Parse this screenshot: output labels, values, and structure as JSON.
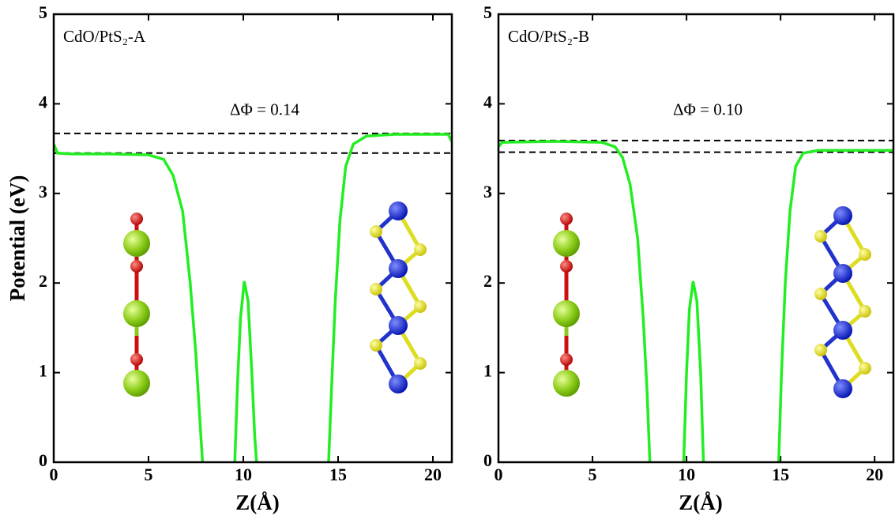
{
  "chart_data": [
    {
      "type": "line",
      "annotations": [
        "CdO/PtS₂-A",
        "ΔΦ = 0.14"
      ],
      "xlabel": "Z(Å)",
      "ylabel": "Potential (eV)",
      "xlim": [
        0,
        21
      ],
      "ylim": [
        0,
        5
      ],
      "xticks": [
        0,
        5,
        10,
        15,
        20
      ],
      "yticks": [
        0,
        1,
        2,
        3,
        4,
        5
      ],
      "reference_lines": [
        3.67,
        3.45
      ],
      "series": [
        {
          "color": "#22ee22",
          "x": [
            0,
            0.2,
            1,
            3,
            5,
            5.8,
            6.3,
            6.8,
            7.2,
            7.5,
            7.7,
            7.85,
            8.5,
            9.55,
            9.7,
            9.85,
            10.05,
            10.25,
            10.45,
            10.6,
            10.7,
            12,
            14.5,
            14.65,
            14.85,
            15.1,
            15.4,
            15.8,
            16.5,
            18,
            20,
            20.8,
            21
          ],
          "values": [
            3.55,
            3.45,
            3.44,
            3.44,
            3.43,
            3.38,
            3.2,
            2.8,
            2.0,
            1.2,
            0.5,
            0,
            null,
            0,
            0.9,
            1.6,
            2.02,
            1.8,
            1.0,
            0.3,
            0,
            null,
            0,
            0.8,
            1.8,
            2.7,
            3.3,
            3.55,
            3.64,
            3.66,
            3.66,
            3.66,
            3.58
          ]
        }
      ]
    },
    {
      "type": "line",
      "annotations": [
        "CdO/PtS₂-B",
        "ΔΦ = 0.10"
      ],
      "xlabel": "Z(Å)",
      "xlim": [
        0,
        21
      ],
      "ylim": [
        0,
        5
      ],
      "xticks": [
        0,
        5,
        10,
        15,
        20
      ],
      "yticks": [
        0,
        1,
        2,
        3,
        4,
        5
      ],
      "reference_lines": [
        3.59,
        3.46
      ],
      "series": [
        {
          "color": "#22ee22",
          "x": [
            0,
            0.2,
            3,
            5.5,
            6.2,
            6.6,
            7,
            7.4,
            7.7,
            7.9,
            8.05,
            9,
            9.85,
            10.0,
            10.15,
            10.35,
            10.55,
            10.75,
            10.9,
            13,
            14.9,
            15.05,
            15.25,
            15.5,
            15.8,
            16.2,
            17,
            21
          ],
          "values": [
            3.52,
            3.57,
            3.58,
            3.57,
            3.52,
            3.4,
            3.1,
            2.5,
            1.6,
            0.8,
            0,
            null,
            0,
            1.0,
            1.7,
            2.02,
            1.8,
            1.0,
            0,
            null,
            0,
            1.0,
            2.0,
            2.8,
            3.3,
            3.45,
            3.48,
            3.48
          ]
        }
      ]
    }
  ]
}
